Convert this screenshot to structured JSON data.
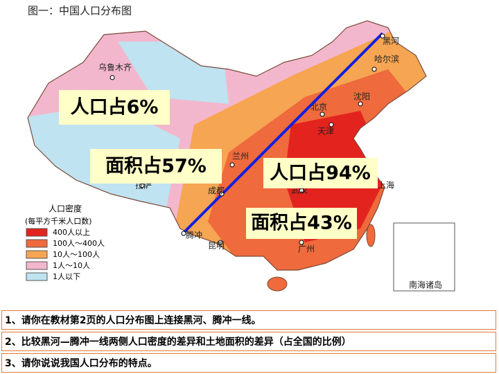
{
  "map": {
    "title": "图一：中国人口分布图",
    "cities": [
      "乌鲁木齐",
      "哈尔滨",
      "黑河",
      "沈阳",
      "北京",
      "天津",
      "兰州",
      "拉萨",
      "成都",
      "武汉",
      "上海",
      "腾冲",
      "昆明",
      "广州",
      "南海诸岛"
    ],
    "legend": {
      "title": "人口密度",
      "subtitle": "(每平方千米人口数)",
      "items": [
        "400人以上",
        "100人～400人",
        "10人～100人",
        "1人～10人",
        "1人以下"
      ]
    },
    "callouts": [
      "人口占6%",
      "面积占57%",
      "人口占94%",
      "面积占43%"
    ]
  },
  "questions": [
    "1、请你在教材第2页的人口分布图上连接黑河、腾冲一线。",
    "2、比较黑河—腾冲一线两侧人口密度的差异和土地面积的差异（占全国的比例）",
    "3、请你说说我国人口分布的特点。"
  ]
}
